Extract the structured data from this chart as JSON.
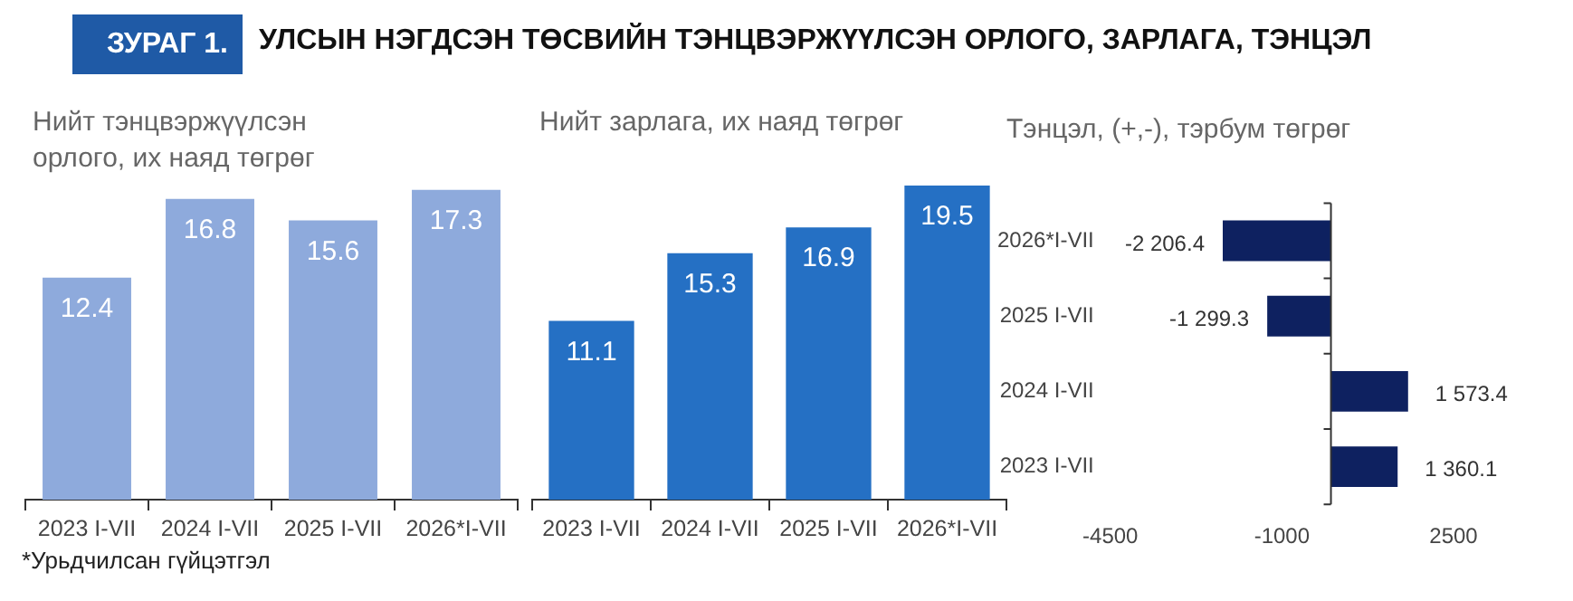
{
  "chart_data": [
    {
      "type": "other",
      "subtitle": "ЗУРАГ 1.",
      "title": "УЛСЫН НЭГДСЭН ТӨСВИЙН ТЭНЦВЭРЖҮҮЛСЭН ОРЛОГО, ЗАРЛАГА, ТЭНЦЭЛ",
      "annotations": [
        "*Урьдчилсан гүйцэтгэл"
      ]
    },
    {
      "type": "bar",
      "title": "Нийт тэнцвэржүүлсэн орлого, их наяд төгрөг",
      "categories": [
        "2023 I-VII",
        "2024 I-VII",
        "2025 I-VII",
        "2026*I-VII"
      ],
      "values": [
        12.4,
        16.8,
        15.6,
        17.3
      ],
      "color": "#8eaadc",
      "data_labels": true,
      "grid": false,
      "legend": false,
      "tick_labels": "x"
    },
    {
      "type": "bar",
      "title": "Нийт зарлага, их наяд төгрөг",
      "categories": [
        "2023 I-VII",
        "2024 I-VII",
        "2025 I-VII",
        "2026*I-VII"
      ],
      "values": [
        11.1,
        15.3,
        16.9,
        19.5
      ],
      "color": "#2570c4",
      "data_labels": true,
      "grid": false,
      "legend": false,
      "tick_labels": "x"
    },
    {
      "type": "bar",
      "orientation": "horizontal",
      "title": "Тэнцэл, (+,-), тэрбум төгрөг",
      "categories": [
        "2026*I-VII",
        "2025 I-VII",
        "2024 I-VII",
        "2023 I-VII"
      ],
      "values": [
        -2206.4,
        -1299.3,
        1573.4,
        1360.1
      ],
      "value_labels": [
        "-2 206.4",
        "-1 299.3",
        "1 573.4",
        "1 360.1"
      ],
      "color": "#0e2160",
      "xlim": [
        -4500,
        2500
      ],
      "xticks": [
        -4500,
        -1000,
        2500
      ],
      "grid": false,
      "legend": false
    }
  ]
}
